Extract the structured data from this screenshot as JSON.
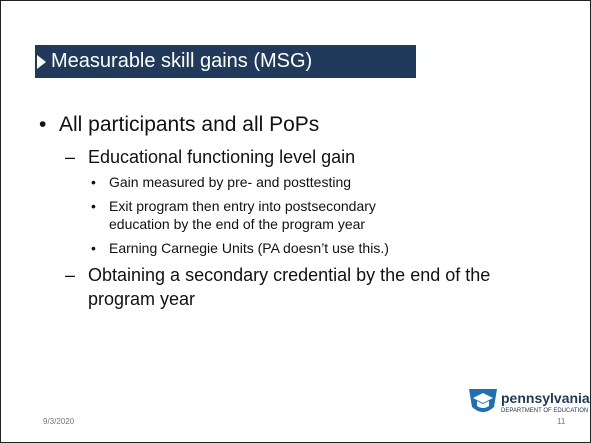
{
  "title": "Measurable skill gains (MSG)",
  "outline": {
    "text": "All participants and all PoPs",
    "items": [
      {
        "text": "Educational functioning level gain",
        "items": [
          "Gain measured by pre- and posttesting",
          "Exit program then entry into postsecondary education by the end of the program year",
          "Earning Carnegie Units (PA doesn’t use this.)"
        ]
      },
      {
        "text": "Obtaining a secondary credential by the end of the program year"
      }
    ]
  },
  "footer": {
    "date": "9/3/2020",
    "page": "11"
  },
  "logo": {
    "name": "pennsylvania",
    "subtitle": "DEPARTMENT OF EDUCATION"
  }
}
